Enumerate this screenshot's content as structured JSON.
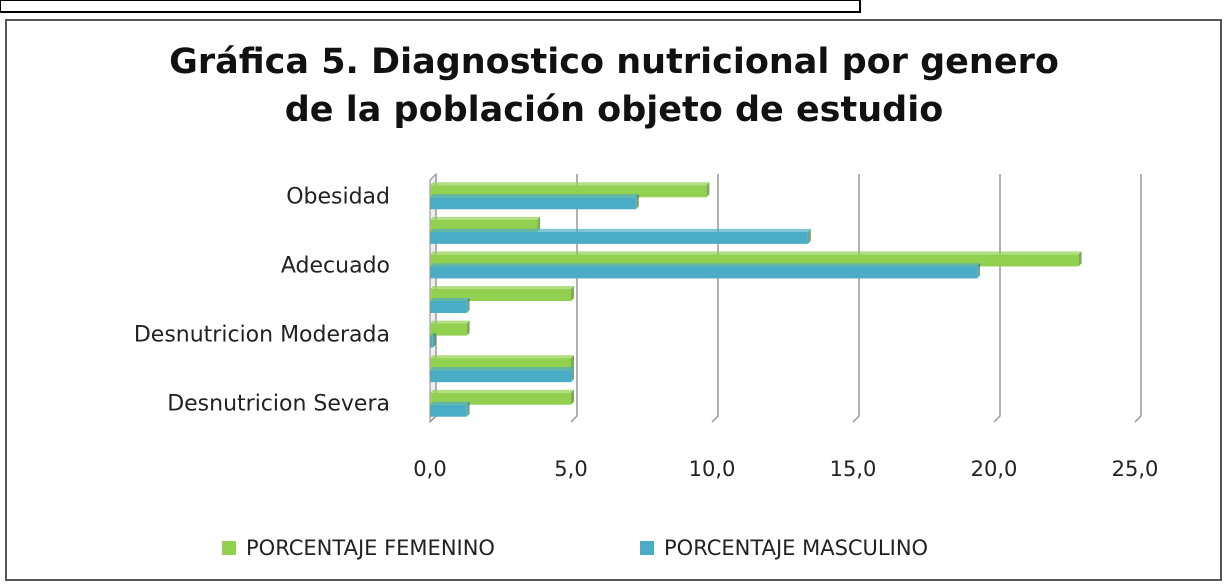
{
  "chart_data": {
    "type": "hbar",
    "title": "Gráfica 5. Diagnostico nutricional por genero de la población objeto de estudio",
    "categories": [
      "Obesidad",
      null,
      "Adecuado",
      null,
      "Desnutricion Moderada",
      null,
      "Desnutricion Severa"
    ],
    "series": [
      {
        "name": "PORCENTAJE FEMENINO",
        "color": "#92d050",
        "values": [
          9.8,
          3.8,
          23.0,
          5.0,
          1.3,
          5.0,
          5.0
        ]
      },
      {
        "name": "PORCENTAJE MASCULINO",
        "color": "#4bacc6",
        "values": [
          7.3,
          13.4,
          19.4,
          1.3,
          0.1,
          5.0,
          1.3
        ]
      }
    ],
    "xlim": [
      0,
      25
    ],
    "xticks": [
      {
        "value": 0,
        "label": "0,0"
      },
      {
        "value": 5,
        "label": "5,0"
      },
      {
        "value": 10,
        "label": "10,0"
      },
      {
        "value": 15,
        "label": "15,0"
      },
      {
        "value": 20,
        "label": "20,0"
      },
      {
        "value": 25,
        "label": "25,0"
      }
    ],
    "grid": true,
    "legend": "bottom"
  }
}
